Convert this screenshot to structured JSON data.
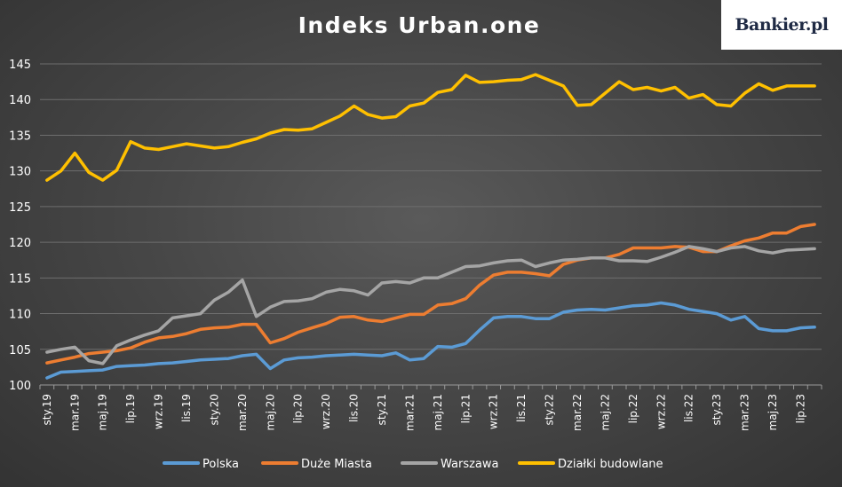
{
  "brand": {
    "logo": "Bankier.pl"
  },
  "chart_data": {
    "type": "line",
    "title": "Indeks Urban.one",
    "xlabel": "",
    "ylabel": "",
    "ylim": [
      100,
      145
    ],
    "yticks": [
      100,
      105,
      110,
      115,
      120,
      125,
      130,
      135,
      140,
      145
    ],
    "grid": true,
    "legend_position": "bottom",
    "x_tick_labels": [
      "sty.19",
      "mar.19",
      "maj.19",
      "lip.19",
      "wrz.19",
      "lis.19",
      "sty.20",
      "mar.20",
      "maj.20",
      "lip.20",
      "wrz.20",
      "lis.20",
      "sty.21",
      "mar.21",
      "maj.21",
      "lip.21",
      "wrz.21",
      "lis.21",
      "sty.22",
      "mar.22",
      "maj.22",
      "lip.22",
      "wrz.22",
      "lis.22",
      "sty.23",
      "mar.23",
      "maj.23",
      "lip.23"
    ],
    "x": [
      "2019-01",
      "2019-02",
      "2019-03",
      "2019-04",
      "2019-05",
      "2019-06",
      "2019-07",
      "2019-08",
      "2019-09",
      "2019-10",
      "2019-11",
      "2019-12",
      "2020-01",
      "2020-02",
      "2020-03",
      "2020-04",
      "2020-05",
      "2020-06",
      "2020-07",
      "2020-08",
      "2020-09",
      "2020-10",
      "2020-11",
      "2020-12",
      "2021-01",
      "2021-02",
      "2021-03",
      "2021-04",
      "2021-05",
      "2021-06",
      "2021-07",
      "2021-08",
      "2021-09",
      "2021-10",
      "2021-11",
      "2021-12",
      "2022-01",
      "2022-02",
      "2022-03",
      "2022-04",
      "2022-05",
      "2022-06",
      "2022-07",
      "2022-08",
      "2022-09",
      "2022-10",
      "2022-11",
      "2022-12",
      "2023-01",
      "2023-02",
      "2023-03",
      "2023-04",
      "2023-05",
      "2023-06",
      "2023-07",
      "2023-08"
    ],
    "series": [
      {
        "name": "Polska",
        "color": "#5b9bd5",
        "values": [
          101.0,
          101.8,
          101.9,
          102.0,
          102.1,
          102.6,
          102.7,
          102.8,
          103.0,
          103.1,
          103.3,
          103.5,
          103.6,
          103.7,
          104.1,
          104.3,
          102.3,
          103.5,
          103.8,
          103.9,
          104.1,
          104.2,
          104.3,
          104.2,
          104.1,
          104.5,
          103.5,
          103.7,
          105.4,
          105.3,
          105.8,
          107.7,
          109.4,
          109.6,
          109.6,
          109.3,
          109.3,
          110.2,
          110.5,
          110.6,
          110.5,
          110.8,
          111.1,
          111.2,
          111.5,
          111.2,
          110.6,
          110.3,
          110.0,
          109.1,
          109.6,
          107.9,
          107.6,
          107.6,
          108.0,
          108.1
        ]
      },
      {
        "name": "Duże Miasta",
        "color": "#ed7d31",
        "values": [
          103.1,
          103.5,
          103.9,
          104.4,
          104.6,
          104.8,
          105.2,
          106.0,
          106.6,
          106.8,
          107.2,
          107.8,
          108.0,
          108.1,
          108.5,
          108.5,
          105.9,
          106.5,
          107.4,
          108.0,
          108.6,
          109.5,
          109.6,
          109.1,
          108.9,
          109.4,
          109.9,
          109.9,
          111.2,
          111.4,
          112.1,
          114.0,
          115.4,
          115.8,
          115.8,
          115.6,
          115.3,
          116.9,
          117.5,
          117.8,
          117.8,
          118.3,
          119.2,
          119.2,
          119.2,
          119.4,
          119.3,
          118.7,
          118.7,
          119.5,
          120.2,
          120.6,
          121.3,
          121.3,
          122.2,
          122.5
        ]
      },
      {
        "name": "Warszawa",
        "color": "#a5a5a5",
        "values": [
          104.6,
          105.0,
          105.3,
          103.4,
          103.0,
          105.5,
          106.3,
          107.0,
          107.6,
          109.4,
          109.7,
          110.0,
          111.9,
          113.0,
          114.7,
          109.6,
          110.9,
          111.7,
          111.8,
          112.1,
          113.0,
          113.4,
          113.2,
          112.6,
          114.3,
          114.5,
          114.3,
          115.0,
          115.0,
          115.8,
          116.6,
          116.7,
          117.1,
          117.4,
          117.5,
          116.6,
          117.1,
          117.5,
          117.6,
          117.8,
          117.8,
          117.4,
          117.4,
          117.3,
          117.9,
          118.6,
          119.4,
          119.1,
          118.7,
          119.2,
          119.4,
          118.8,
          118.5,
          118.9,
          119.0,
          119.1
        ]
      },
      {
        "name": "Działki budowlane",
        "color": "#ffc000",
        "values": [
          128.7,
          130.0,
          132.5,
          129.8,
          128.7,
          130.1,
          134.1,
          133.2,
          133.0,
          133.4,
          133.8,
          133.5,
          133.2,
          133.4,
          134.0,
          134.5,
          135.3,
          135.8,
          135.7,
          135.9,
          136.8,
          137.7,
          139.1,
          137.9,
          137.4,
          137.6,
          139.1,
          139.5,
          141.0,
          141.4,
          143.4,
          142.4,
          142.5,
          142.7,
          142.8,
          143.5,
          142.7,
          141.9,
          139.2,
          139.3,
          140.9,
          142.5,
          141.4,
          141.7,
          141.2,
          141.7,
          140.2,
          140.7,
          139.3,
          139.1,
          140.9,
          142.2,
          141.3,
          141.9,
          141.9,
          141.9
        ]
      }
    ]
  }
}
